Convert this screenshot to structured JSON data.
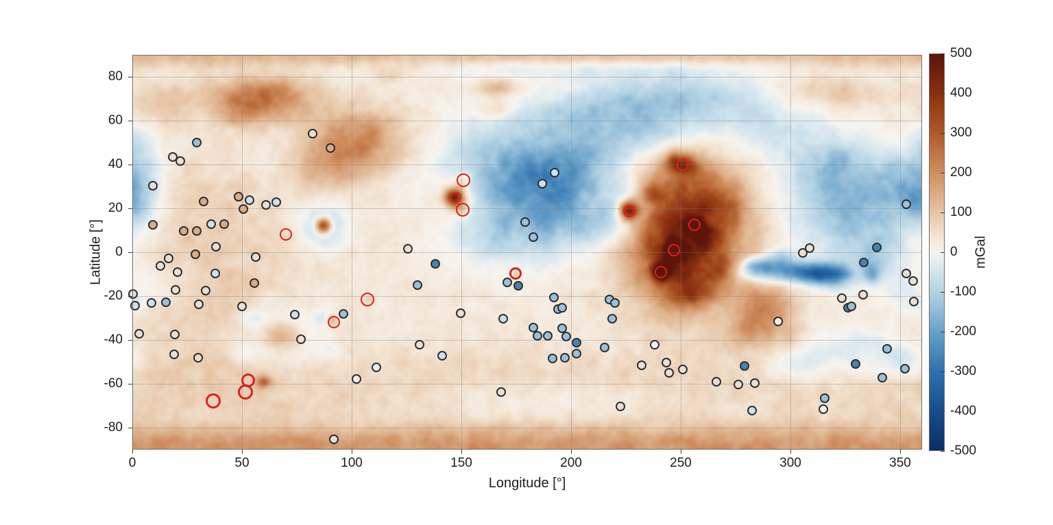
{
  "chart_data": {
    "type": "heatmap",
    "title": "",
    "xlabel": "Longitude [°]",
    "ylabel": "Latitude [°]",
    "xlim": [
      0,
      360
    ],
    "ylim": [
      -90,
      90
    ],
    "xticks": [
      0,
      50,
      100,
      150,
      200,
      250,
      300,
      350
    ],
    "yticks": [
      80,
      60,
      40,
      20,
      0,
      -20,
      -40,
      -60,
      -80
    ],
    "grid": true,
    "colorbar": {
      "label": "mGal",
      "min": -500,
      "max": 500,
      "ticks": [
        500,
        400,
        300,
        200,
        100,
        0,
        -100,
        -200,
        -300,
        -400,
        -500
      ],
      "stops": [
        [
          -500,
          "#0a2e68"
        ],
        [
          -400,
          "#174e8d"
        ],
        [
          -300,
          "#2e72ae"
        ],
        [
          -200,
          "#6aa2ca"
        ],
        [
          -100,
          "#b5d3e4"
        ],
        [
          -35,
          "#ddeaf0"
        ],
        [
          0,
          "#f7f4ef"
        ],
        [
          35,
          "#f4e8da"
        ],
        [
          100,
          "#e7c6a7"
        ],
        [
          200,
          "#d09062"
        ],
        [
          300,
          "#b05a28"
        ],
        [
          400,
          "#8b300f"
        ],
        [
          500,
          "#5c140b"
        ]
      ]
    },
    "field_model_mGal": {
      "comment": "Gravity anomaly field approximated as sum of Gaussians: [lon_deg, lat_deg, sigma_lon, sigma_lat, amplitude_mGal]",
      "base": 30,
      "gaussians": [
        [
          180,
          90,
          999,
          4,
          95
        ],
        [
          180,
          -90,
          999,
          5,
          130
        ],
        [
          180,
          -83,
          999,
          5,
          55
        ],
        [
          180,
          -62,
          999,
          13,
          40
        ],
        [
          200,
          84,
          70,
          3.5,
          -65
        ],
        [
          15,
          68,
          12,
          6,
          75
        ],
        [
          320,
          73,
          16,
          5,
          70
        ],
        [
          60,
          70,
          16,
          7,
          215
        ],
        [
          48,
          64,
          8,
          5,
          70
        ],
        [
          103,
          50,
          15,
          10,
          190
        ],
        [
          88,
          37,
          10,
          7,
          80
        ],
        [
          120,
          82,
          8,
          3,
          60
        ],
        [
          167,
          75,
          6,
          3,
          110
        ],
        [
          166,
          65,
          5,
          3,
          85
        ],
        [
          30,
          15,
          25,
          18,
          55
        ],
        [
          40,
          -30,
          30,
          22,
          50
        ],
        [
          4,
          30,
          7,
          12,
          -115
        ],
        [
          2,
          50,
          5,
          6,
          -60
        ],
        [
          357,
          22,
          6,
          6,
          -85
        ],
        [
          12,
          -15,
          8,
          8,
          -45
        ],
        [
          0,
          -24,
          4,
          3,
          -55
        ],
        [
          87,
          12,
          2.6,
          2.6,
          440
        ],
        [
          87,
          12,
          6.5,
          6.5,
          -150
        ],
        [
          147,
          25,
          3,
          3,
          465
        ],
        [
          147,
          25,
          8,
          8,
          55
        ],
        [
          151,
          33,
          2.5,
          2.5,
          90
        ],
        [
          150.5,
          19,
          2.5,
          2.5,
          80
        ],
        [
          172,
          38,
          22,
          16,
          -170
        ],
        [
          188,
          18,
          15,
          14,
          -160
        ],
        [
          160,
          6,
          12,
          9,
          -80
        ],
        [
          205,
          38,
          18,
          12,
          -140
        ],
        [
          212,
          12,
          10,
          8,
          -100
        ],
        [
          235,
          55,
          18,
          8,
          -110
        ],
        [
          245,
          70,
          28,
          8,
          -150
        ],
        [
          200,
          62,
          20,
          7,
          -70
        ],
        [
          290,
          56,
          18,
          9,
          -80
        ],
        [
          190,
          -68,
          40,
          6,
          -45
        ],
        [
          252,
          8,
          20,
          22,
          300
        ],
        [
          248,
          -2,
          10,
          12,
          170
        ],
        [
          258,
          25,
          12,
          10,
          110
        ],
        [
          226.5,
          19,
          3.2,
          3.2,
          470
        ],
        [
          226.5,
          19,
          7.5,
          7.5,
          -130
        ],
        [
          251,
          40,
          5,
          4,
          250
        ],
        [
          246.5,
          41.5,
          3,
          3,
          110
        ],
        [
          256.5,
          11.5,
          2.6,
          2.6,
          410
        ],
        [
          247,
          1,
          2.6,
          2.6,
          400
        ],
        [
          241,
          -9,
          2.8,
          2.8,
          420
        ],
        [
          262,
          5,
          4,
          4,
          140
        ],
        [
          268,
          -8,
          5,
          5,
          140
        ],
        [
          255,
          -18,
          6,
          5,
          170
        ],
        [
          237,
          28,
          4,
          4,
          140
        ],
        [
          270,
          20,
          6,
          6,
          90
        ],
        [
          300,
          -9,
          16,
          3.5,
          -270
        ],
        [
          285,
          -6,
          5,
          3,
          -150
        ],
        [
          312,
          -10,
          6,
          3,
          -170
        ],
        [
          322,
          -12,
          5,
          4,
          -140
        ],
        [
          337,
          -10,
          3,
          3,
          -150
        ],
        [
          295,
          -2,
          4,
          3,
          -110
        ],
        [
          290,
          -25,
          9,
          8,
          155
        ],
        [
          282,
          -35,
          7,
          7,
          105
        ],
        [
          300,
          -38,
          6,
          5,
          55
        ],
        [
          330,
          20,
          22,
          16,
          -185
        ],
        [
          352,
          35,
          10,
          8,
          -85
        ],
        [
          318,
          40,
          12,
          9,
          -105
        ],
        [
          340,
          -2,
          8,
          6,
          -85
        ],
        [
          352,
          -18,
          8,
          8,
          -55
        ],
        [
          330,
          -45,
          18,
          8,
          -85
        ],
        [
          302,
          -52,
          10,
          6,
          -65
        ],
        [
          352,
          -50,
          8,
          5,
          -75
        ],
        [
          68,
          -38,
          6,
          5,
          185
        ],
        [
          68,
          -38,
          13,
          10,
          -110
        ],
        [
          55,
          -30,
          4,
          3,
          -55
        ],
        [
          88,
          -30,
          4,
          3,
          -55
        ],
        [
          90,
          -45,
          4,
          3,
          -45
        ],
        [
          52,
          -46,
          4,
          3,
          -45
        ],
        [
          60,
          -59,
          2.5,
          1.8,
          195
        ],
        [
          91,
          -31,
          1.8,
          1.8,
          150
        ],
        [
          108,
          -21.5,
          1.5,
          1.5,
          65
        ],
        [
          175,
          -9.7,
          1.3,
          1.3,
          95
        ]
      ],
      "noise": {
        "octave_amps": [
          22,
          14,
          8
        ],
        "octave_cell_deg": [
          5,
          2,
          1
        ],
        "seed": 42
      }
    },
    "markers": {
      "fill_colors": {
        "white": "#f4f0e8",
        "cream": "#eae0d2",
        "tan": "#d9ad86",
        "lightblue": "#cfe1ea",
        "blue": "#9cc1d7",
        "darkblue": "#4a83ad"
      },
      "black_circle_radius_px": 7,
      "black_circles": [
        [
          29.4,
          50,
          "blue"
        ],
        [
          18.4,
          43.4,
          "cream"
        ],
        [
          21.9,
          41.6,
          "cream"
        ],
        [
          9.4,
          30.3,
          "cream"
        ],
        [
          82.2,
          54.1,
          "cream"
        ],
        [
          90.3,
          47.5,
          "tan"
        ],
        [
          32.5,
          23.1,
          "tan"
        ],
        [
          48.4,
          25.3,
          "tan"
        ],
        [
          53.4,
          23.7,
          "lightblue"
        ],
        [
          50.6,
          19.7,
          "tan"
        ],
        [
          61,
          21.5,
          "cream"
        ],
        [
          65.6,
          22.8,
          "lightblue"
        ],
        [
          9.4,
          12.5,
          "tan"
        ],
        [
          23.4,
          9.7,
          "tan"
        ],
        [
          29.4,
          9.7,
          "tan"
        ],
        [
          35.9,
          12.8,
          "lightblue"
        ],
        [
          41.9,
          12.8,
          "tan"
        ],
        [
          38,
          2.4,
          "cream"
        ],
        [
          28.8,
          -1,
          "tan"
        ],
        [
          16.6,
          -2.8,
          "cream"
        ],
        [
          56.3,
          -2.2,
          "cream"
        ],
        [
          125.6,
          1.6,
          "cream"
        ],
        [
          186.9,
          31.2,
          "lightblue"
        ],
        [
          179.1,
          13.8,
          "blue"
        ],
        [
          182.8,
          6.9,
          "blue"
        ],
        [
          192.5,
          36.3,
          "lightblue"
        ],
        [
          352.8,
          21.9,
          "blue"
        ],
        [
          339.4,
          2.2,
          "darkblue"
        ],
        [
          308.8,
          1.9,
          "cream"
        ],
        [
          305.6,
          -0.3,
          "cream"
        ],
        [
          12.8,
          -6.3,
          "cream"
        ],
        [
          20.6,
          -9.1,
          "cream"
        ],
        [
          37.8,
          -9.7,
          "lightblue"
        ],
        [
          55.6,
          -14.1,
          "tan"
        ],
        [
          19.7,
          -17.2,
          "cream"
        ],
        [
          33.4,
          -17.5,
          "cream"
        ],
        [
          0.3,
          -19.1,
          "cream"
        ],
        [
          1.3,
          -24.4,
          "lightblue"
        ],
        [
          8.8,
          -23.1,
          "lightblue"
        ],
        [
          15.3,
          -22.8,
          "blue"
        ],
        [
          30.3,
          -23.8,
          "cream"
        ],
        [
          50,
          -24.7,
          "cream"
        ],
        [
          74.1,
          -28.4,
          "lightblue"
        ],
        [
          76.9,
          -39.7,
          "cream"
        ],
        [
          3.1,
          -37.2,
          "cream"
        ],
        [
          19.4,
          -37.5,
          "cream"
        ],
        [
          19.1,
          -46.6,
          "cream"
        ],
        [
          30,
          -48.1,
          "cream"
        ],
        [
          91.9,
          -85.3,
          "cream"
        ],
        [
          138.1,
          -5.3,
          "darkblue"
        ],
        [
          130,
          -15,
          "blue"
        ],
        [
          96.3,
          -28.1,
          "blue"
        ],
        [
          171,
          -13.8,
          "blue"
        ],
        [
          175.9,
          -15.3,
          "darkblue"
        ],
        [
          149.7,
          -27.8,
          "cream"
        ],
        [
          169.1,
          -30.3,
          "lightblue"
        ],
        [
          182.8,
          -34.4,
          "blue"
        ],
        [
          184.7,
          -38.1,
          "blue"
        ],
        [
          131,
          -42.2,
          "cream"
        ],
        [
          141.3,
          -47.2,
          "lightblue"
        ],
        [
          111.3,
          -52.5,
          "white"
        ],
        [
          102.2,
          -57.8,
          "white"
        ],
        [
          168.1,
          -63.8,
          "cream"
        ],
        [
          192.2,
          -20.6,
          "blue"
        ],
        [
          194.1,
          -25.9,
          "blue"
        ],
        [
          195.9,
          -25.3,
          "blue"
        ],
        [
          217.5,
          -21.6,
          "blue"
        ],
        [
          220,
          -23.1,
          "blue"
        ],
        [
          218.8,
          -30.3,
          "blue"
        ],
        [
          195.9,
          -34.7,
          "blue"
        ],
        [
          197.8,
          -38.4,
          "blue"
        ],
        [
          189.4,
          -38.1,
          "blue"
        ],
        [
          202.5,
          -41.3,
          "darkblue"
        ],
        [
          215.3,
          -43.4,
          "blue"
        ],
        [
          202.5,
          -46.3,
          "blue"
        ],
        [
          191.6,
          -48.4,
          "blue"
        ],
        [
          197.2,
          -48.1,
          "blue"
        ],
        [
          238.1,
          -42.2,
          "white"
        ],
        [
          232.2,
          -51.6,
          "cream"
        ],
        [
          243.4,
          -50.3,
          "cream"
        ],
        [
          244.7,
          -55,
          "cream"
        ],
        [
          250.9,
          -53.4,
          "cream"
        ],
        [
          266.3,
          -59.1,
          "cream"
        ],
        [
          276.3,
          -60.3,
          "cream"
        ],
        [
          279.1,
          -51.9,
          "darkblue"
        ],
        [
          222.5,
          -70.3,
          "cream"
        ],
        [
          333.4,
          -4.7,
          "darkblue"
        ],
        [
          352.8,
          -9.7,
          "cream"
        ],
        [
          356,
          -13.1,
          "cream"
        ],
        [
          356.3,
          -22.5,
          "cream"
        ],
        [
          333.1,
          -19.4,
          "cream"
        ],
        [
          323.4,
          -20.9,
          "cream"
        ],
        [
          326.3,
          -25.3,
          "darkblue"
        ],
        [
          327.8,
          -24.7,
          "blue"
        ],
        [
          294.4,
          -31.6,
          "white"
        ],
        [
          344.1,
          -44.1,
          "blue"
        ],
        [
          329.7,
          -50.9,
          "darkblue"
        ],
        [
          352.2,
          -53.1,
          "blue"
        ],
        [
          341.9,
          -57.2,
          "blue"
        ],
        [
          283.8,
          -59.7,
          "cream"
        ],
        [
          315.6,
          -66.6,
          "blue"
        ],
        [
          315,
          -71.6,
          "white"
        ],
        [
          282.5,
          -72.2,
          "lightblue"
        ]
      ],
      "red_circle_color": "#d8231d",
      "red_circles": [
        [
          70,
          8,
          9,
          2.5
        ],
        [
          151,
          32.8,
          10,
          2.5
        ],
        [
          147.5,
          25,
          8,
          2.5
        ],
        [
          150.6,
          19.4,
          10,
          2.5
        ],
        [
          226.5,
          18.8,
          9,
          3.5
        ],
        [
          251,
          40,
          9,
          2.5
        ],
        [
          256.3,
          12.5,
          9,
          2.5
        ],
        [
          246.9,
          0.9,
          9,
          2.5
        ],
        [
          240.9,
          -9.1,
          9,
          2.5
        ],
        [
          107.2,
          -21.6,
          10,
          2.5
        ],
        [
          92,
          -32,
          9,
          2.5
        ],
        [
          174.7,
          -9.7,
          9,
          3
        ],
        [
          52.8,
          -58.4,
          10,
          3
        ],
        [
          51.6,
          -63.8,
          11,
          3
        ],
        [
          36.9,
          -67.8,
          11,
          3
        ]
      ]
    }
  }
}
